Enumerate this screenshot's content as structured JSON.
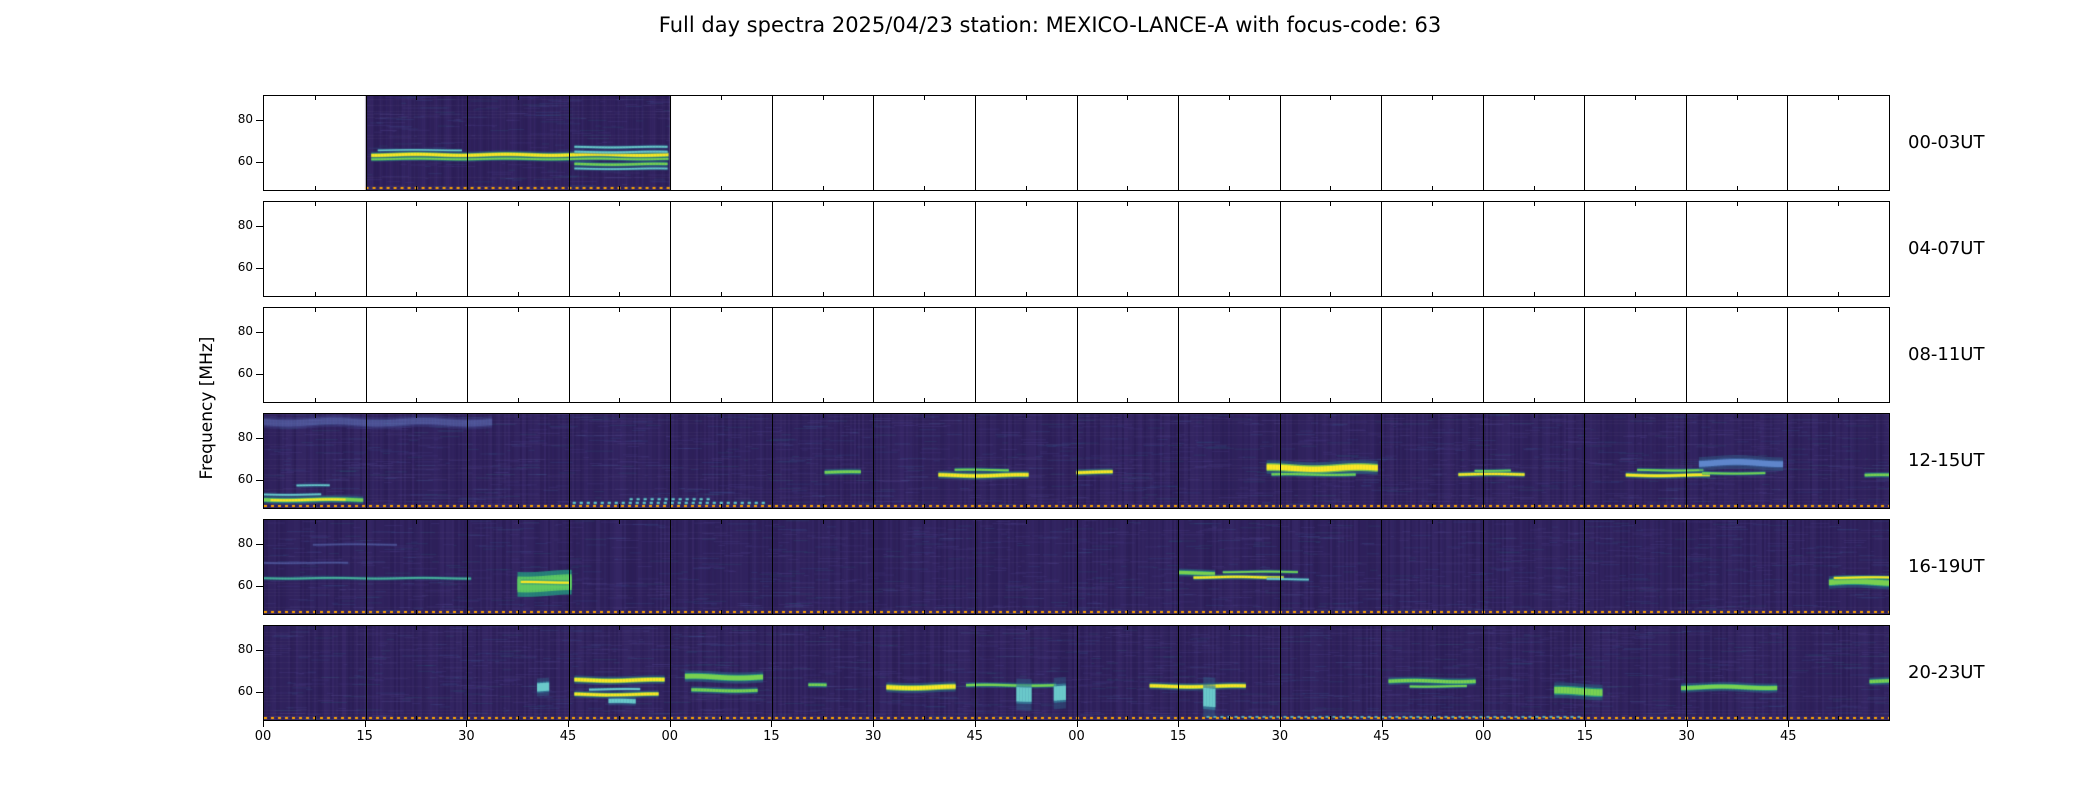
{
  "title": "Full day spectra 2025/04/23 station: MEXICO-LANCE-A with focus-code: 63",
  "ylabel": "Frequency [MHz]",
  "chart_data": {
    "type": "heatmap",
    "subtype": "radio-spectrogram-day-overview",
    "station": "MEXICO-LANCE-A",
    "date": "2025/04/23",
    "focus_code": "63",
    "colormap": "viridis",
    "freq_axis_mhz": {
      "min": 46,
      "max": 92,
      "ticks": [
        80,
        60
      ]
    },
    "x_tick_labels": [
      "00",
      "15",
      "30",
      "45",
      "00",
      "15",
      "30",
      "45",
      "00",
      "15",
      "30",
      "45",
      "00",
      "15",
      "30",
      "45"
    ],
    "colors": {
      "panel_background": "#2b1c52",
      "empty_panel": "#ffffff",
      "grid_line": "#000000",
      "baseline_dash": "#ffa500",
      "band_yellow": "#fde725",
      "band_green": "#7ad151",
      "band_bright_green": "#5ec962",
      "band_cyan": "#6ecece",
      "band_blue": "#4678be",
      "band_teal": "#35b779"
    },
    "rows": [
      {
        "label": "00-03UT",
        "segments": [
          [
            0.0625,
            0.25
          ]
        ],
        "events": [
          {
            "x": 0.066,
            "w": 0.182,
            "f": 63.2,
            "h": 1.4,
            "c": "yellow"
          },
          {
            "x": 0.066,
            "w": 0.182,
            "f": 61.2,
            "h": 0.9,
            "c": "green"
          },
          {
            "x": 0.07,
            "w": 0.05,
            "f": 65.5,
            "h": 0.7,
            "c": "cyan"
          },
          {
            "x": 0.191,
            "w": 0.057,
            "f": 67,
            "h": 0.9,
            "c": "cyan"
          },
          {
            "x": 0.191,
            "w": 0.057,
            "f": 64.6,
            "h": 0.9,
            "c": "cyan"
          },
          {
            "x": 0.191,
            "w": 0.057,
            "f": 58.6,
            "h": 1.1,
            "c": "green"
          },
          {
            "x": 0.191,
            "w": 0.057,
            "f": 56.4,
            "h": 0.8,
            "c": "cyan"
          }
        ]
      },
      {
        "label": "04-07UT",
        "segments": [],
        "events": []
      },
      {
        "label": "08-11UT",
        "segments": [],
        "events": []
      },
      {
        "label": "12-15UT",
        "segments": [
          [
            0,
            1
          ]
        ],
        "events": [
          {
            "x": 0.0,
            "w": 0.06,
            "f": 50,
            "h": 1.6,
            "c": "green"
          },
          {
            "x": 0.004,
            "w": 0.045,
            "f": 50,
            "h": 1.1,
            "c": "yellow"
          },
          {
            "x": 0.0,
            "w": 0.035,
            "f": 52.6,
            "h": 0.8,
            "c": "cyan"
          },
          {
            "x": 0.02,
            "w": 0.02,
            "f": 57,
            "h": 0.8,
            "c": "cyan"
          },
          {
            "x": 0.0,
            "w": 0.14,
            "f": 88,
            "h": 3,
            "c": "faint"
          },
          {
            "x": 0.19,
            "w": 0.12,
            "f": 48.5,
            "h": 0.9,
            "c": "cyan",
            "dash": true
          },
          {
            "x": 0.225,
            "w": 0.05,
            "f": 50.3,
            "h": 0.8,
            "c": "cyan",
            "dash": true
          },
          {
            "x": 0.345,
            "w": 0.022,
            "f": 63.5,
            "h": 1.3,
            "c": "green"
          },
          {
            "x": 0.415,
            "w": 0.055,
            "f": 62,
            "h": 1.5,
            "c": "yellow"
          },
          {
            "x": 0.425,
            "w": 0.032,
            "f": 64.6,
            "h": 0.9,
            "c": "green"
          },
          {
            "x": 0.5,
            "w": 0.022,
            "f": 63.5,
            "h": 1.3,
            "c": "yellow"
          },
          {
            "x": 0.617,
            "w": 0.068,
            "f": 65.5,
            "h": 2.6,
            "c": "yellow"
          },
          {
            "x": 0.62,
            "w": 0.05,
            "f": 62.4,
            "h": 1.0,
            "c": "green"
          },
          {
            "x": 0.735,
            "w": 0.04,
            "f": 62.5,
            "h": 1.1,
            "c": "yellow"
          },
          {
            "x": 0.745,
            "w": 0.022,
            "f": 64.3,
            "h": 0.8,
            "c": "green"
          },
          {
            "x": 0.838,
            "w": 0.05,
            "f": 62,
            "h": 1.2,
            "c": "yellow"
          },
          {
            "x": 0.845,
            "w": 0.04,
            "f": 64.5,
            "h": 0.9,
            "c": "green"
          },
          {
            "x": 0.883,
            "w": 0.051,
            "f": 68,
            "h": 2.8,
            "c": "blue"
          },
          {
            "x": 0.885,
            "w": 0.038,
            "f": 63,
            "h": 0.9,
            "c": "green"
          },
          {
            "x": 0.985,
            "w": 0.015,
            "f": 62,
            "h": 1.2,
            "c": "green"
          }
        ]
      },
      {
        "label": "16-19UT",
        "segments": [
          [
            0,
            1
          ]
        ],
        "events": [
          {
            "x": 0.0,
            "w": 0.127,
            "f": 63.5,
            "h": 0.9,
            "c": "teal"
          },
          {
            "x": 0.0,
            "w": 0.05,
            "f": 71,
            "h": 0.7,
            "c": "faint"
          },
          {
            "x": 0.03,
            "w": 0.05,
            "f": 80,
            "h": 0.7,
            "c": "faint"
          },
          {
            "x": 0.156,
            "w": 0.033,
            "f": 61,
            "h": 5.5,
            "c": "brightgreen"
          },
          {
            "x": 0.158,
            "w": 0.029,
            "f": 61.5,
            "h": 1.0,
            "c": "yellow"
          },
          {
            "x": 0.563,
            "w": 0.022,
            "f": 66,
            "h": 1.6,
            "c": "green"
          },
          {
            "x": 0.572,
            "w": 0.055,
            "f": 64,
            "h": 1.0,
            "c": "yellow"
          },
          {
            "x": 0.59,
            "w": 0.045,
            "f": 66.6,
            "h": 0.8,
            "c": "green"
          },
          {
            "x": 0.617,
            "w": 0.025,
            "f": 63,
            "h": 0.8,
            "c": "cyan"
          },
          {
            "x": 0.963,
            "w": 0.037,
            "f": 61.5,
            "h": 2.6,
            "c": "green"
          },
          {
            "x": 0.966,
            "w": 0.034,
            "f": 63.8,
            "h": 0.9,
            "c": "yellow"
          }
        ]
      },
      {
        "label": "20-23UT",
        "segments": [
          [
            0,
            1
          ]
        ],
        "events": [
          {
            "x": 0.168,
            "w": 0.007,
            "f": 62,
            "h": 4,
            "c": "cyan"
          },
          {
            "x": 0.191,
            "w": 0.055,
            "f": 65.5,
            "h": 1.6,
            "c": "yellow"
          },
          {
            "x": 0.191,
            "w": 0.05,
            "f": 58.5,
            "h": 1.3,
            "c": "yellow"
          },
          {
            "x": 0.2,
            "w": 0.03,
            "f": 61,
            "h": 0.9,
            "c": "cyan"
          },
          {
            "x": 0.212,
            "w": 0.015,
            "f": 55,
            "h": 2,
            "c": "cyan"
          },
          {
            "x": 0.259,
            "w": 0.048,
            "f": 67,
            "h": 2.3,
            "c": "green"
          },
          {
            "x": 0.263,
            "w": 0.04,
            "f": 60.5,
            "h": 1.4,
            "c": "green"
          },
          {
            "x": 0.335,
            "w": 0.01,
            "f": 63,
            "h": 1.2,
            "c": "green"
          },
          {
            "x": 0.383,
            "w": 0.042,
            "f": 62,
            "h": 1.9,
            "c": "yellow"
          },
          {
            "x": 0.432,
            "w": 0.055,
            "f": 63,
            "h": 1.1,
            "c": "green"
          },
          {
            "x": 0.463,
            "w": 0.008,
            "f": 59,
            "h": 7,
            "c": "cyan"
          },
          {
            "x": 0.486,
            "w": 0.006,
            "f": 59,
            "h": 7,
            "c": "cyan"
          },
          {
            "x": 0.545,
            "w": 0.058,
            "f": 62.5,
            "h": 1.4,
            "c": "yellow"
          },
          {
            "x": 0.578,
            "w": 0.007,
            "f": 57,
            "h": 9,
            "c": "cyan"
          },
          {
            "x": 0.692,
            "w": 0.052,
            "f": 65,
            "h": 1.6,
            "c": "green"
          },
          {
            "x": 0.705,
            "w": 0.035,
            "f": 62.5,
            "h": 0.9,
            "c": "green"
          },
          {
            "x": 0.794,
            "w": 0.028,
            "f": 60,
            "h": 3.2,
            "c": "green"
          },
          {
            "x": 0.872,
            "w": 0.058,
            "f": 62,
            "h": 1.9,
            "c": "green"
          },
          {
            "x": 0.988,
            "w": 0.012,
            "f": 65,
            "h": 1.6,
            "c": "green"
          },
          {
            "x": 0.58,
            "w": 0.23,
            "f": 47.5,
            "h": 0.6,
            "c": "cyan",
            "dash": true
          }
        ]
      }
    ]
  }
}
